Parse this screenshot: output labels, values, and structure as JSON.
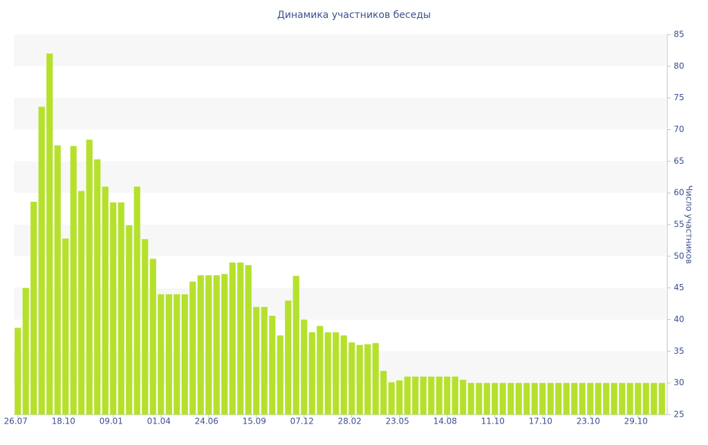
{
  "chart_data": {
    "type": "bar",
    "title": "Динамика участников беседы",
    "y_axis_label": "Число участников",
    "categories": [
      "26.07",
      null,
      null,
      null,
      null,
      null,
      "18.10",
      null,
      null,
      null,
      null,
      null,
      "09.01",
      null,
      null,
      null,
      null,
      null,
      "01.04",
      null,
      null,
      null,
      null,
      null,
      "24.06",
      null,
      null,
      null,
      null,
      null,
      "15.09",
      null,
      null,
      null,
      null,
      null,
      "07.12",
      null,
      null,
      null,
      null,
      null,
      "28.02",
      null,
      null,
      null,
      null,
      null,
      "23.05",
      null,
      null,
      null,
      null,
      null,
      "14.08",
      null,
      null,
      null,
      null,
      null,
      "11.10",
      null,
      null,
      null,
      null,
      null,
      "17.10",
      null,
      null,
      null,
      null,
      null,
      "23.10",
      null,
      null,
      null,
      null,
      null,
      "29.10",
      null,
      null,
      null
    ],
    "values": [
      38.7,
      45,
      58.6,
      73.6,
      82,
      67.5,
      52.8,
      67.4,
      60.3,
      68.4,
      65.3,
      61,
      58.5,
      58.5,
      54.9,
      61,
      52.7,
      49.6,
      44,
      44,
      44,
      44,
      46,
      47,
      47,
      47,
      47.2,
      49,
      49,
      48.6,
      42,
      42,
      40.6,
      37.5,
      43,
      46.9,
      40,
      38,
      39,
      38,
      38,
      37.5,
      36.4,
      36,
      36.1,
      36.3,
      31.9,
      30.1,
      30.4,
      31,
      31,
      31,
      31,
      31,
      31,
      31,
      30.5,
      30,
      30,
      30,
      30,
      30,
      30,
      30,
      30,
      30,
      30,
      30,
      30,
      30,
      30,
      30,
      30,
      30,
      30,
      30,
      30,
      30,
      30,
      30,
      30,
      30
    ],
    "color": "#b5e12d",
    "ylim": [
      25,
      85
    ],
    "yticks": [
      25,
      30,
      35,
      40,
      45,
      50,
      55,
      60,
      65,
      70,
      75,
      80,
      85
    ],
    "y_axis_side": "right",
    "banded_grid": true
  }
}
